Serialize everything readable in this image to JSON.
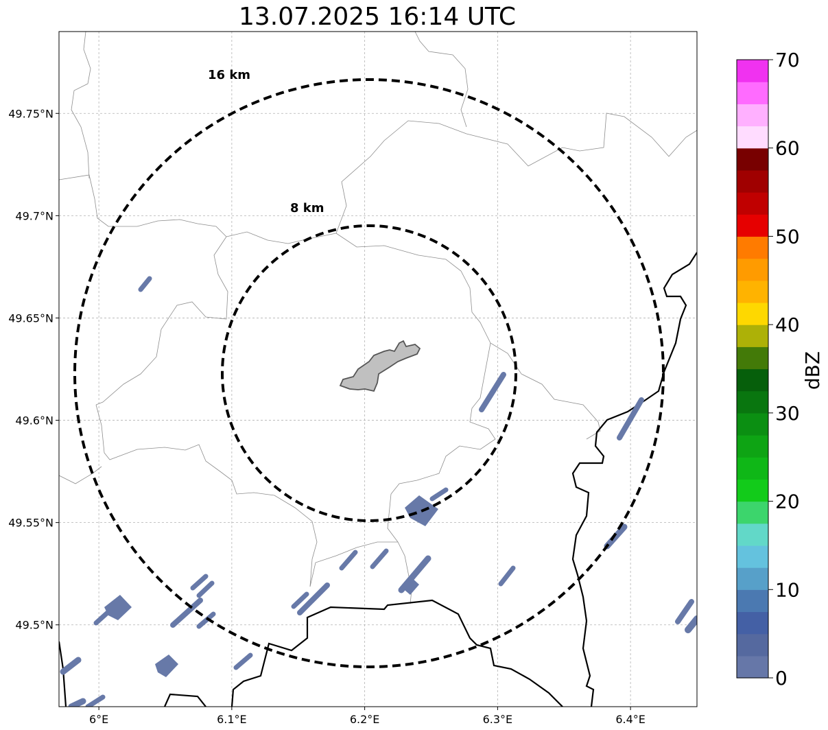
{
  "title": "13.07.2025 16:14 UTC",
  "map": {
    "lon_range": [
      5.97,
      6.45
    ],
    "lat_range": [
      49.46,
      49.79
    ],
    "lon_ticks": [
      {
        "value": 6.0,
        "label": "6°E"
      },
      {
        "value": 6.1,
        "label": "6.1°E"
      },
      {
        "value": 6.2,
        "label": "6.2°E"
      },
      {
        "value": 6.3,
        "label": "6.3°E"
      },
      {
        "value": 6.4,
        "label": "6.4°E"
      }
    ],
    "lat_ticks": [
      {
        "value": 49.75,
        "label": "49.75°N"
      },
      {
        "value": 49.7,
        "label": "49.7°N"
      },
      {
        "value": 49.65,
        "label": "49.65°N"
      },
      {
        "value": 49.6,
        "label": "49.6°N"
      },
      {
        "value": 49.55,
        "label": "49.55°N"
      },
      {
        "value": 49.5,
        "label": "49.5°N"
      }
    ],
    "rings": [
      {
        "label": "16 km"
      },
      {
        "label": "8 km"
      }
    ],
    "echo_color": "#6779a8",
    "city_fill": "#c0c0c0"
  },
  "colorbar": {
    "label": "dBZ",
    "min": 0,
    "max": 70,
    "ticks": [
      {
        "value": 0,
        "label": "0"
      },
      {
        "value": 10,
        "label": "10"
      },
      {
        "value": 20,
        "label": "20"
      },
      {
        "value": 30,
        "label": "30"
      },
      {
        "value": 40,
        "label": "40"
      },
      {
        "value": 50,
        "label": "50"
      },
      {
        "value": 60,
        "label": "60"
      },
      {
        "value": 70,
        "label": "70"
      }
    ],
    "colors": [
      "#6677a8",
      "#55699f",
      "#4460a5",
      "#4b79b1",
      "#57a0c9",
      "#64c2de",
      "#62d8c8",
      "#3cd56c",
      "#12cb1a",
      "#0fb717",
      "#0ea414",
      "#0b8f12",
      "#09760f",
      "#065f0b",
      "#437a08",
      "#adb107",
      "#fed800",
      "#ffb300",
      "#ff9b00",
      "#ff7b00",
      "#e60000",
      "#c00000",
      "#a00000",
      "#780000",
      "#ffdcff",
      "#ffb0ff",
      "#ff6bff",
      "#f032f0"
    ]
  }
}
